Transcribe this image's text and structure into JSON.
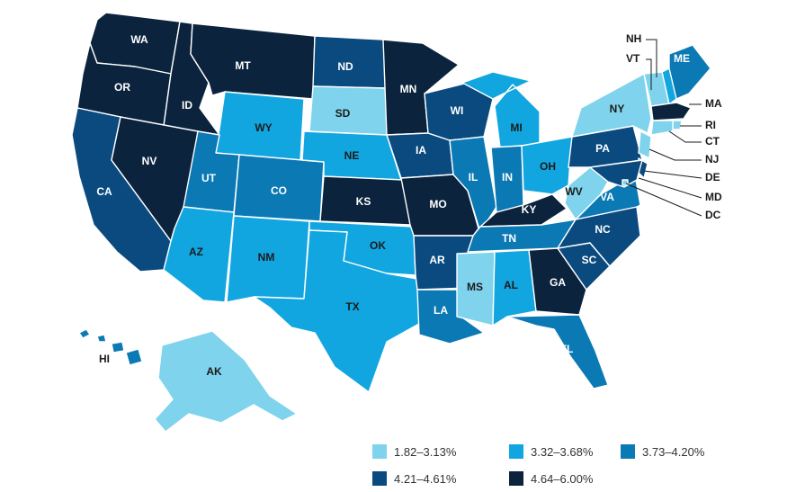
{
  "colors": {
    "bin1": "#7fd3ec",
    "bin2": "#12a6e0",
    "bin3": "#0a79b4",
    "bin4": "#0a4a7f",
    "bin5": "#0b233d"
  },
  "legend": [
    {
      "range": "1.82–3.13%",
      "color": "#7fd3ec"
    },
    {
      "range": "3.32–3.68%",
      "color": "#12a6e0"
    },
    {
      "range": "3.73–4.20%",
      "color": "#0a79b4"
    },
    {
      "range": "4.21–4.61%",
      "color": "#0a4a7f"
    },
    {
      "range": "4.64–6.00%",
      "color": "#0b233d"
    }
  ],
  "states": [
    {
      "abbr": "WA",
      "bin": 5
    },
    {
      "abbr": "OR",
      "bin": 5
    },
    {
      "abbr": "CA",
      "bin": 4
    },
    {
      "abbr": "ID",
      "bin": 5
    },
    {
      "abbr": "NV",
      "bin": 5
    },
    {
      "abbr": "MT",
      "bin": 5
    },
    {
      "abbr": "WY",
      "bin": 2
    },
    {
      "abbr": "UT",
      "bin": 3
    },
    {
      "abbr": "AZ",
      "bin": 2
    },
    {
      "abbr": "CO",
      "bin": 3
    },
    {
      "abbr": "NM",
      "bin": 2
    },
    {
      "abbr": "ND",
      "bin": 4
    },
    {
      "abbr": "SD",
      "bin": 1
    },
    {
      "abbr": "NE",
      "bin": 2
    },
    {
      "abbr": "KS",
      "bin": 5
    },
    {
      "abbr": "OK",
      "bin": 2
    },
    {
      "abbr": "TX",
      "bin": 2
    },
    {
      "abbr": "MN",
      "bin": 5
    },
    {
      "abbr": "IA",
      "bin": 4
    },
    {
      "abbr": "MO",
      "bin": 5
    },
    {
      "abbr": "AR",
      "bin": 4
    },
    {
      "abbr": "LA",
      "bin": 3
    },
    {
      "abbr": "WI",
      "bin": 4
    },
    {
      "abbr": "IL",
      "bin": 3
    },
    {
      "abbr": "MI",
      "bin": 2
    },
    {
      "abbr": "IN",
      "bin": 3
    },
    {
      "abbr": "OH",
      "bin": 2
    },
    {
      "abbr": "KY",
      "bin": 5
    },
    {
      "abbr": "TN",
      "bin": 3
    },
    {
      "abbr": "MS",
      "bin": 1
    },
    {
      "abbr": "AL",
      "bin": 2
    },
    {
      "abbr": "GA",
      "bin": 5
    },
    {
      "abbr": "FL",
      "bin": 3
    },
    {
      "abbr": "SC",
      "bin": 4
    },
    {
      "abbr": "NC",
      "bin": 4
    },
    {
      "abbr": "VA",
      "bin": 3
    },
    {
      "abbr": "WV",
      "bin": 1
    },
    {
      "abbr": "PA",
      "bin": 4
    },
    {
      "abbr": "NY",
      "bin": 1
    },
    {
      "abbr": "ME",
      "bin": 3
    },
    {
      "abbr": "NH",
      "bin": 2
    },
    {
      "abbr": "VT",
      "bin": 1
    },
    {
      "abbr": "MA",
      "bin": 5
    },
    {
      "abbr": "RI",
      "bin": 1
    },
    {
      "abbr": "CT",
      "bin": 1
    },
    {
      "abbr": "NJ",
      "bin": 1
    },
    {
      "abbr": "DE",
      "bin": 4
    },
    {
      "abbr": "MD",
      "bin": 4
    },
    {
      "abbr": "DC",
      "bin": 1
    },
    {
      "abbr": "AK",
      "bin": 1
    },
    {
      "abbr": "HI",
      "bin": 3
    }
  ]
}
